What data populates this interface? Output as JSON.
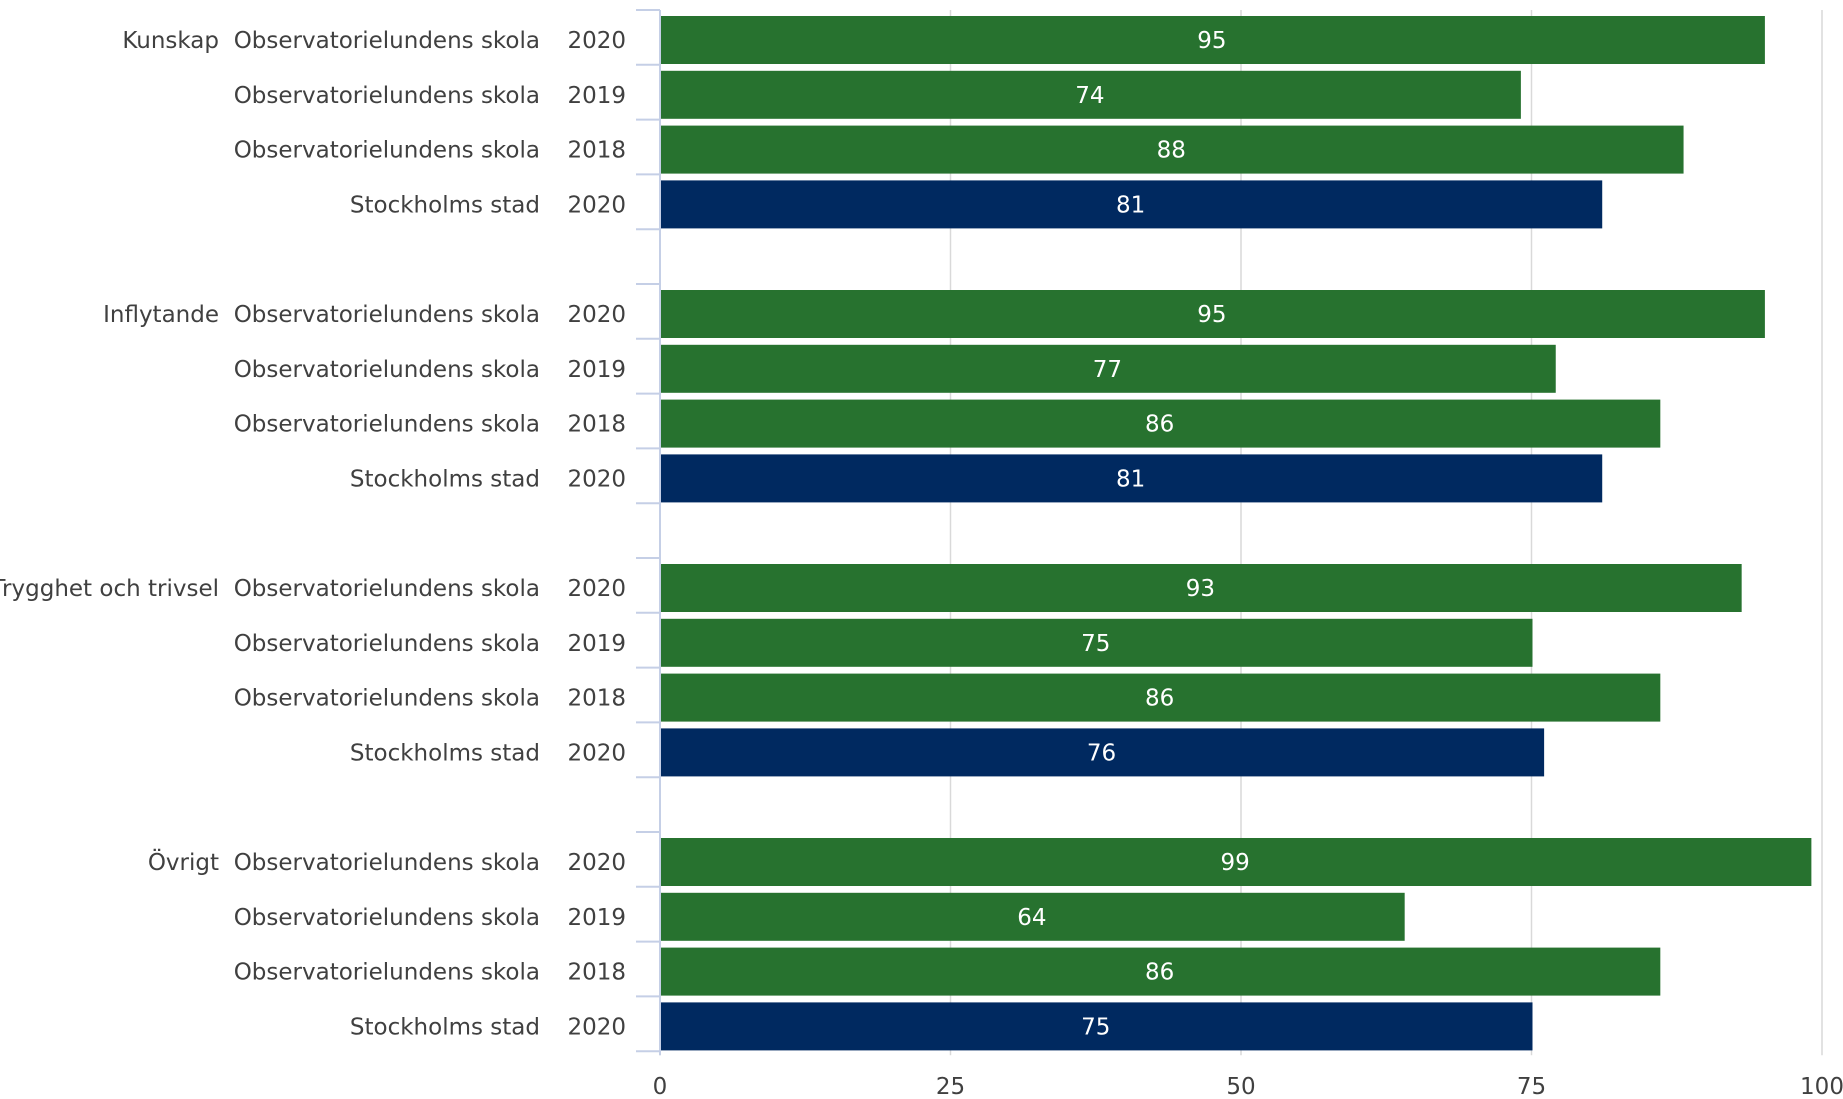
{
  "chart_data": {
    "type": "bar",
    "orientation": "horizontal",
    "xlim": [
      0,
      100
    ],
    "x_ticks": [
      "0",
      "25",
      "50",
      "75",
      "100"
    ],
    "grid": true,
    "colors": {
      "school": "#27722f",
      "city": "#002960",
      "grid": "#d9d9d9",
      "axis": "#c5cfe6"
    },
    "groups": [
      {
        "label": "Kunskap",
        "rows": [
          {
            "entity": "Observatorielundens skola",
            "year": "2020",
            "value": 95,
            "series": "school"
          },
          {
            "entity": "Observatorielundens skola",
            "year": "2019",
            "value": 74,
            "series": "school"
          },
          {
            "entity": "Observatorielundens skola",
            "year": "2018",
            "value": 88,
            "series": "school"
          },
          {
            "entity": "Stockholms stad",
            "year": "2020",
            "value": 81,
            "series": "city"
          }
        ]
      },
      {
        "label": "Inflytande",
        "rows": [
          {
            "entity": "Observatorielundens skola",
            "year": "2020",
            "value": 95,
            "series": "school"
          },
          {
            "entity": "Observatorielundens skola",
            "year": "2019",
            "value": 77,
            "series": "school"
          },
          {
            "entity": "Observatorielundens skola",
            "year": "2018",
            "value": 86,
            "series": "school"
          },
          {
            "entity": "Stockholms stad",
            "year": "2020",
            "value": 81,
            "series": "city"
          }
        ]
      },
      {
        "label": "Trygghet och trivsel",
        "rows": [
          {
            "entity": "Observatorielundens skola",
            "year": "2020",
            "value": 93,
            "series": "school"
          },
          {
            "entity": "Observatorielundens skola",
            "year": "2019",
            "value": 75,
            "series": "school"
          },
          {
            "entity": "Observatorielundens skola",
            "year": "2018",
            "value": 86,
            "series": "school"
          },
          {
            "entity": "Stockholms stad",
            "year": "2020",
            "value": 76,
            "series": "city"
          }
        ]
      },
      {
        "label": "Övrigt",
        "rows": [
          {
            "entity": "Observatorielundens skola",
            "year": "2020",
            "value": 99,
            "series": "school"
          },
          {
            "entity": "Observatorielundens skola",
            "year": "2019",
            "value": 64,
            "series": "school"
          },
          {
            "entity": "Observatorielundens skola",
            "year": "2018",
            "value": 86,
            "series": "school"
          },
          {
            "entity": "Stockholms stad",
            "year": "2020",
            "value": 75,
            "series": "city"
          }
        ]
      }
    ]
  }
}
